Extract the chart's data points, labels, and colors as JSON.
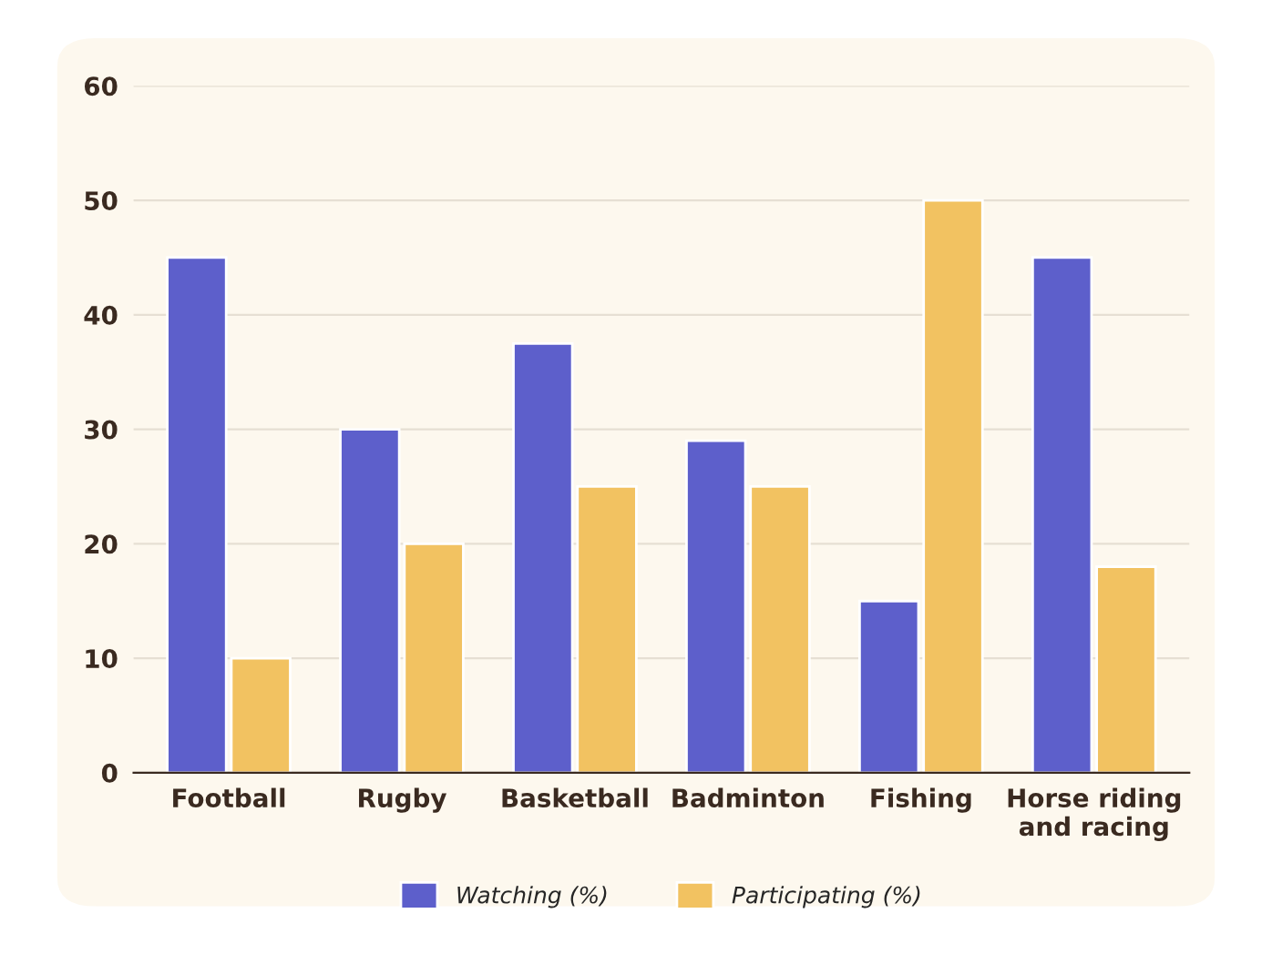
{
  "chart_data": {
    "type": "bar",
    "categories": [
      "Football",
      "Rugby",
      "Basketball",
      "Badminton",
      "Fishing",
      "Horse riding\nand racing"
    ],
    "series": [
      {
        "name": "Watching (%)",
        "color": "#5d5fcb",
        "values": [
          45,
          30,
          37.5,
          29,
          15,
          45
        ]
      },
      {
        "name": "Participating (%)",
        "color": "#f2c261",
        "values": [
          10,
          20,
          25,
          25,
          50,
          18
        ]
      }
    ],
    "ylim": [
      0,
      60
    ],
    "yticks": [
      0,
      10,
      20,
      30,
      40,
      50,
      60
    ],
    "grid": "y",
    "legend": "bottom"
  }
}
